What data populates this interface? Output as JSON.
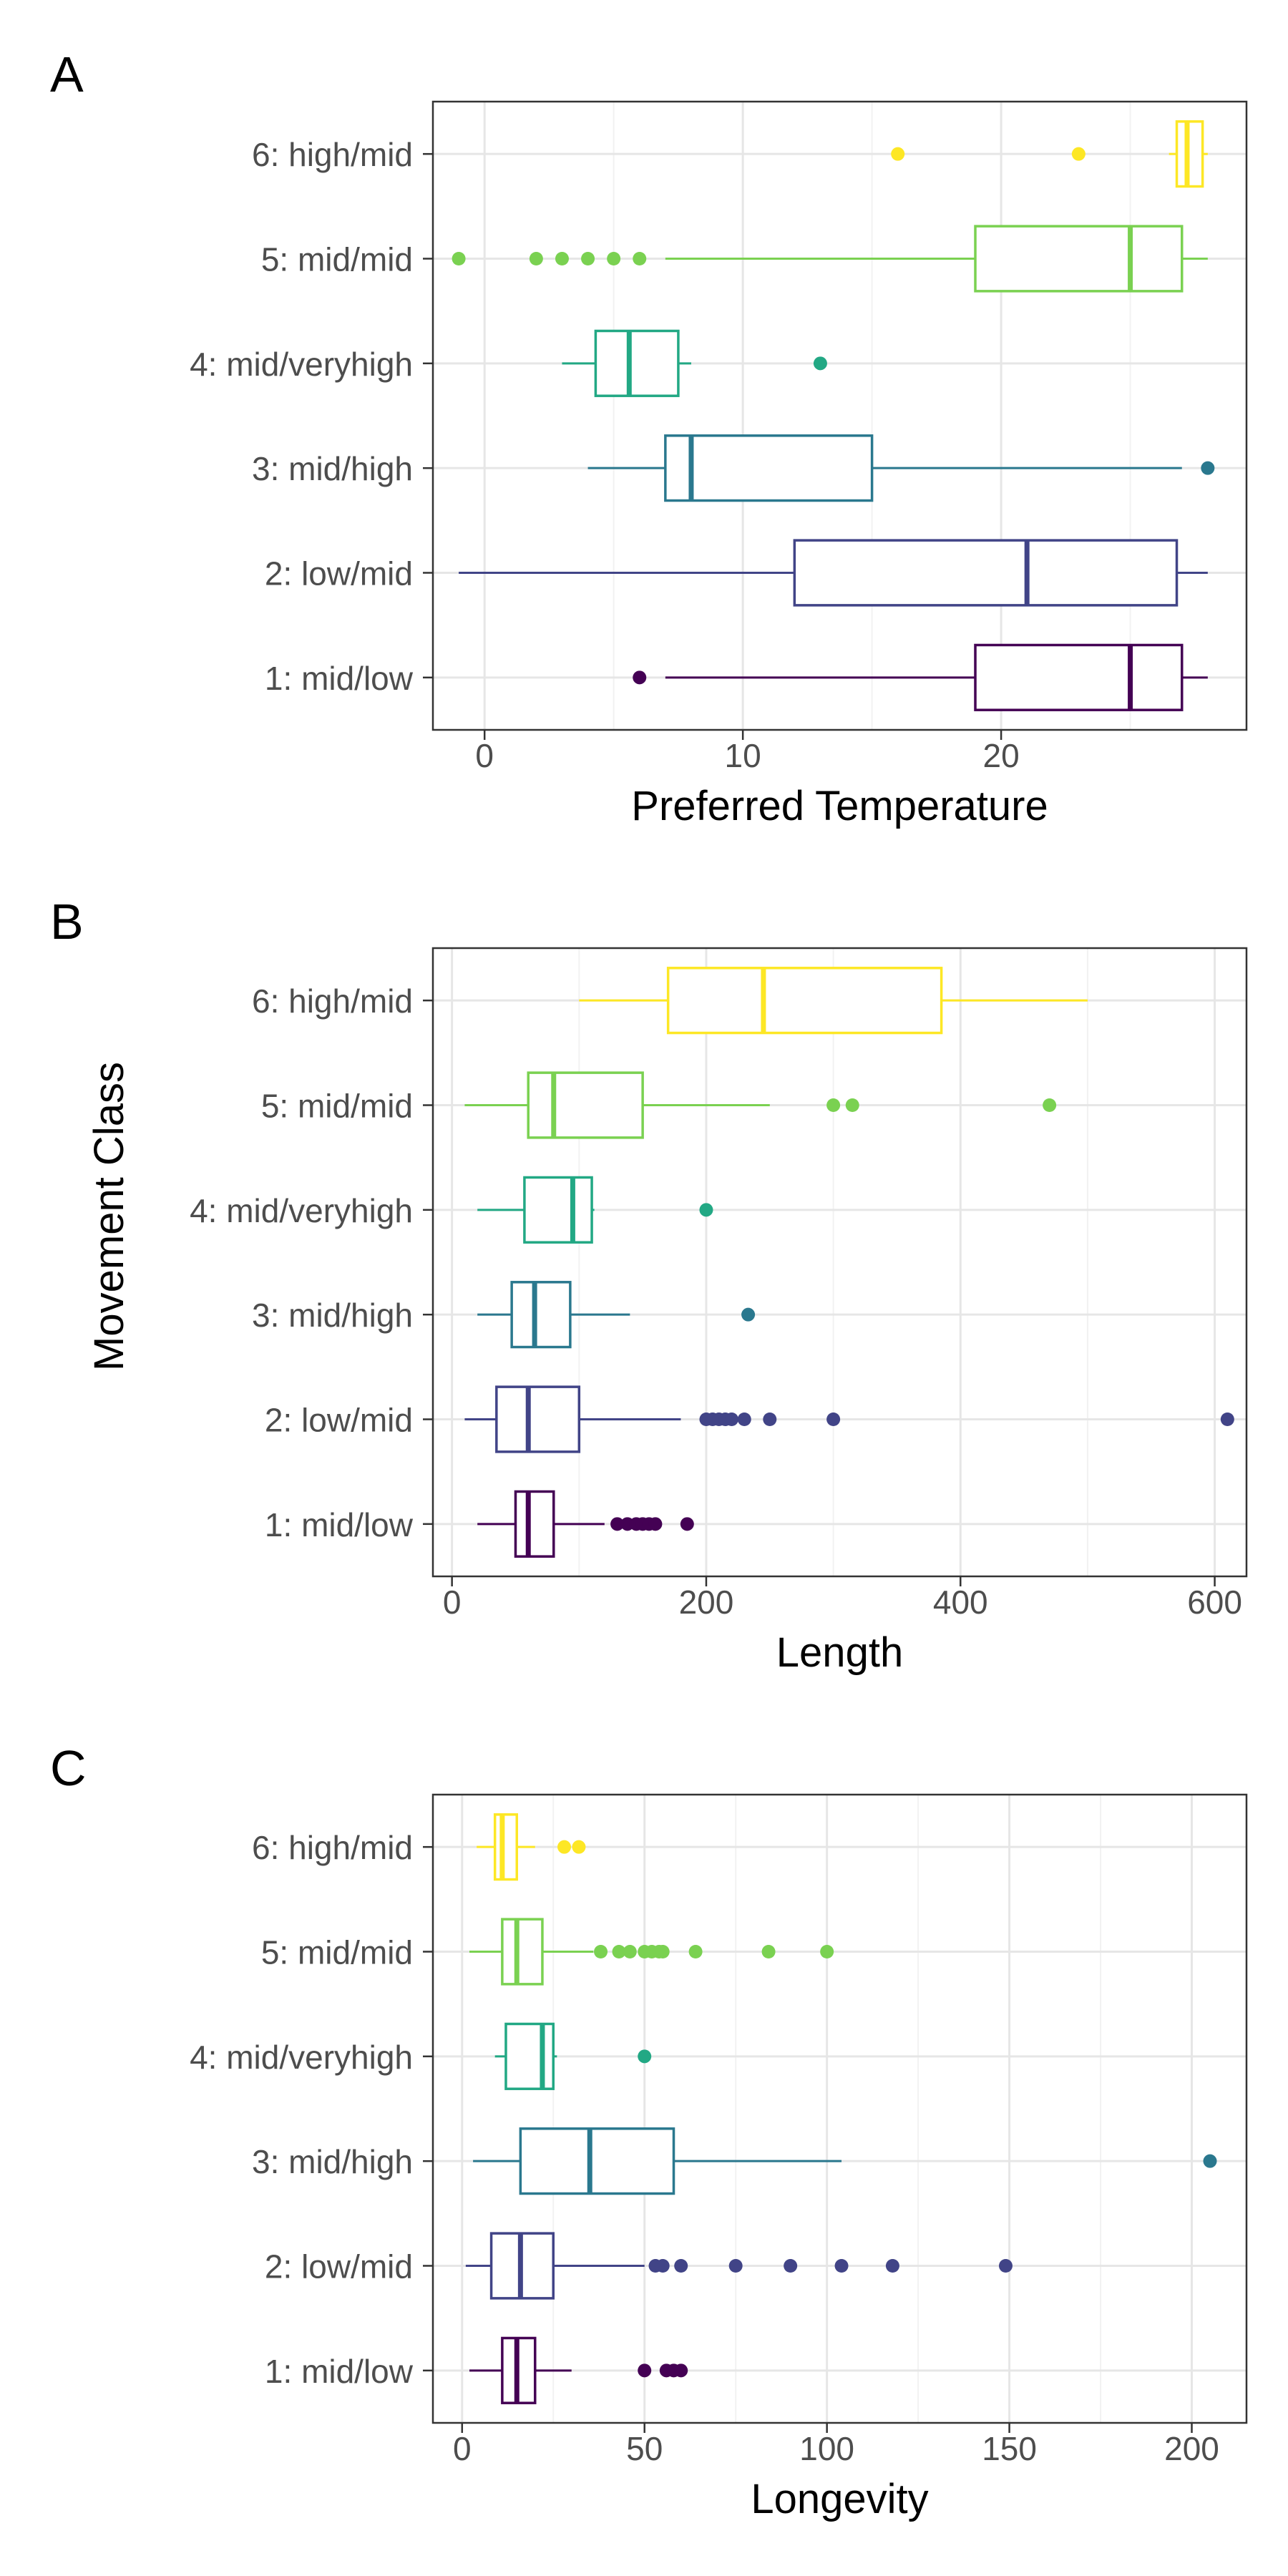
{
  "figure": {
    "shared_ylabel": "Movement Class",
    "colors": {
      "1: mid/low": "#440154",
      "2: low/mid": "#414487",
      "3: mid/high": "#2a788e",
      "4: mid/veryhigh": "#22a884",
      "5: mid/mid": "#7ad151",
      "6: high/mid": "#fde725"
    }
  },
  "chart_data": [
    {
      "type": "boxplot",
      "panel_label": "A",
      "xlabel": "Preferred Temperature",
      "ylabel": "",
      "xlim": [
        -2,
        29.5
      ],
      "xticks": [
        0,
        10,
        20
      ],
      "grid": true,
      "categories": [
        "1: mid/low",
        "2: low/mid",
        "3: mid/high",
        "4: mid/veryhigh",
        "5: mid/mid",
        "6: high/mid"
      ],
      "boxes": [
        {
          "category": "1: mid/low",
          "whisker_low": 7,
          "q1": 19,
          "median": 25,
          "q3": 27,
          "whisker_high": 28,
          "outliers": [
            6
          ]
        },
        {
          "category": "2: low/mid",
          "whisker_low": -1,
          "q1": 12,
          "median": 21,
          "q3": 26.8,
          "whisker_high": 28,
          "outliers": []
        },
        {
          "category": "3: mid/high",
          "whisker_low": 4,
          "q1": 7,
          "median": 8,
          "q3": 15,
          "whisker_high": 27,
          "outliers": [
            28
          ]
        },
        {
          "category": "4: mid/veryhigh",
          "whisker_low": 3,
          "q1": 4.3,
          "median": 5.6,
          "q3": 7.5,
          "whisker_high": 8,
          "outliers": [
            13
          ]
        },
        {
          "category": "5: mid/mid",
          "whisker_low": 7,
          "q1": 19,
          "median": 25,
          "q3": 27,
          "whisker_high": 28,
          "outliers": [
            -1,
            2,
            3,
            4,
            5,
            6
          ]
        },
        {
          "category": "6: high/mid",
          "whisker_low": 26.5,
          "q1": 26.8,
          "median": 27.2,
          "q3": 27.8,
          "whisker_high": 28,
          "outliers": [
            16,
            23
          ]
        }
      ]
    },
    {
      "type": "boxplot",
      "panel_label": "B",
      "xlabel": "Length",
      "ylabel": "",
      "xlim": [
        -15,
        625
      ],
      "xticks": [
        0,
        200,
        400,
        600
      ],
      "grid": true,
      "categories": [
        "1: mid/low",
        "2: low/mid",
        "3: mid/high",
        "4: mid/veryhigh",
        "5: mid/mid",
        "6: high/mid"
      ],
      "boxes": [
        {
          "category": "1: mid/low",
          "whisker_low": 20,
          "q1": 50,
          "median": 60,
          "q3": 80,
          "whisker_high": 120,
          "outliers": [
            130,
            138,
            145,
            150,
            155,
            160,
            185
          ]
        },
        {
          "category": "2: low/mid",
          "whisker_low": 10,
          "q1": 35,
          "median": 60,
          "q3": 100,
          "whisker_high": 180,
          "outliers": [
            200,
            205,
            210,
            215,
            220,
            230,
            250,
            300,
            610
          ]
        },
        {
          "category": "3: mid/high",
          "whisker_low": 20,
          "q1": 47,
          "median": 65,
          "q3": 93,
          "whisker_high": 140,
          "outliers": [
            233
          ]
        },
        {
          "category": "4: mid/veryhigh",
          "whisker_low": 20,
          "q1": 57,
          "median": 95,
          "q3": 110,
          "whisker_high": 112,
          "outliers": [
            200
          ]
        },
        {
          "category": "5: mid/mid",
          "whisker_low": 10,
          "q1": 60,
          "median": 80,
          "q3": 150,
          "whisker_high": 250,
          "outliers": [
            300,
            315,
            470
          ]
        },
        {
          "category": "6: high/mid",
          "whisker_low": 100,
          "q1": 170,
          "median": 245,
          "q3": 385,
          "whisker_high": 500,
          "outliers": []
        }
      ]
    },
    {
      "type": "boxplot",
      "panel_label": "C",
      "xlabel": "Longevity",
      "ylabel": "",
      "xlim": [
        -8,
        215
      ],
      "xticks": [
        0,
        50,
        100,
        150,
        200
      ],
      "grid": true,
      "categories": [
        "1: mid/low",
        "2: low/mid",
        "3: mid/high",
        "4: mid/veryhigh",
        "5: mid/mid",
        "6: high/mid"
      ],
      "boxes": [
        {
          "category": "1: mid/low",
          "whisker_low": 2,
          "q1": 11,
          "median": 15,
          "q3": 20,
          "whisker_high": 30,
          "outliers": [
            50,
            56,
            58,
            60
          ]
        },
        {
          "category": "2: low/mid",
          "whisker_low": 1,
          "q1": 8,
          "median": 16,
          "q3": 25,
          "whisker_high": 50,
          "outliers": [
            53,
            55,
            60,
            75,
            90,
            104,
            118,
            149
          ]
        },
        {
          "category": "3: mid/high",
          "whisker_low": 3,
          "q1": 16,
          "median": 35,
          "q3": 58,
          "whisker_high": 104,
          "outliers": [
            205
          ]
        },
        {
          "category": "4: mid/veryhigh",
          "whisker_low": 9,
          "q1": 12,
          "median": 22,
          "q3": 25,
          "whisker_high": 26,
          "outliers": [
            50
          ]
        },
        {
          "category": "5: mid/mid",
          "whisker_low": 2,
          "q1": 11,
          "median": 15,
          "q3": 22,
          "whisker_high": 36,
          "outliers": [
            38,
            43,
            46,
            50,
            52,
            54,
            55,
            64,
            84,
            100
          ]
        },
        {
          "category": "6: high/mid",
          "whisker_low": 4,
          "q1": 9,
          "median": 11,
          "q3": 15,
          "whisker_high": 20,
          "outliers": [
            28,
            32
          ]
        }
      ]
    }
  ]
}
